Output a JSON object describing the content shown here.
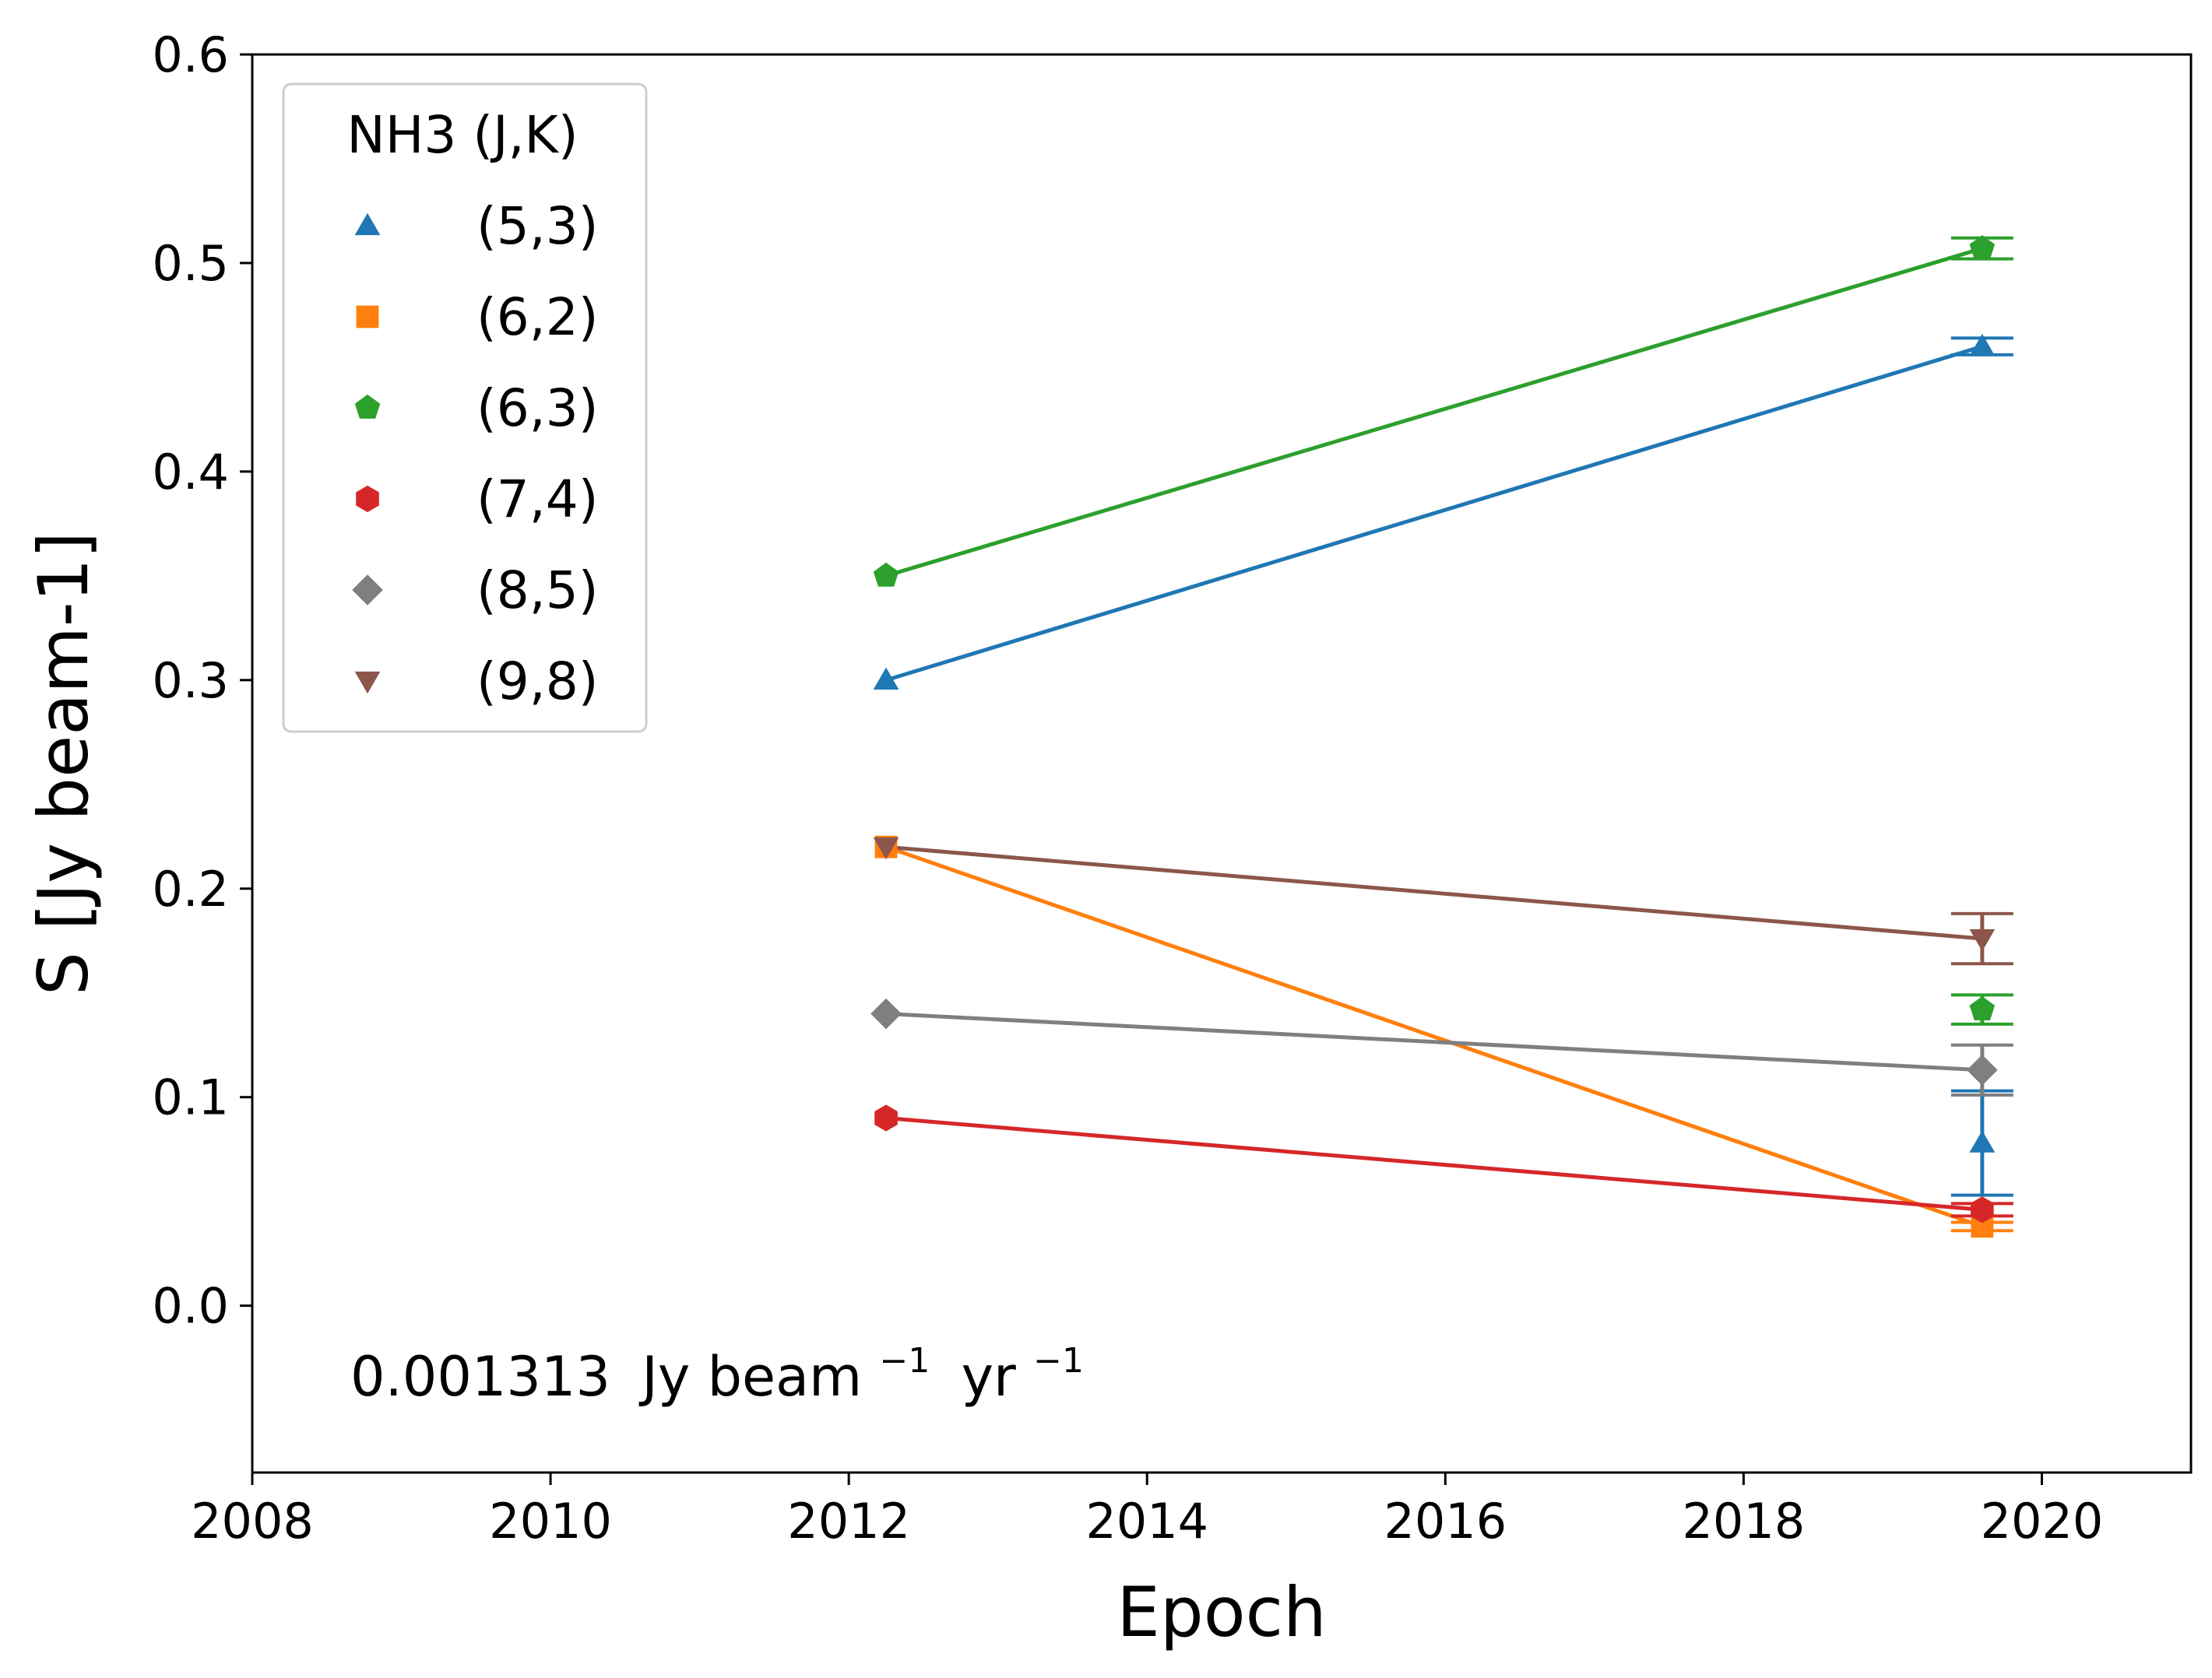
{
  "chart_data": {
    "type": "scatter",
    "xlabel": "Epoch",
    "ylabel": "S [Jy beam-1]",
    "xlim": [
      2008,
      2021
    ],
    "ylim": [
      -0.08,
      0.6
    ],
    "xticks": [
      2008,
      2010,
      2012,
      2014,
      2016,
      2018,
      2020
    ],
    "xtick_labels": [
      "2008",
      "2010",
      "2012",
      "2014",
      "2016",
      "2018",
      "2020"
    ],
    "yticks": [
      0.0,
      0.1,
      0.2,
      0.3,
      0.4,
      0.5,
      0.6
    ],
    "ytick_labels": [
      "0.0",
      "0.1",
      "0.2",
      "0.3",
      "0.4",
      "0.5",
      "0.6"
    ],
    "grid": false,
    "legend": {
      "title": "NH3 (J,K)",
      "placement": "upper-left"
    },
    "annotation": {
      "value": "0.001313",
      "unit1": "Jy beam",
      "exp1": "−1",
      "unit2": "yr",
      "exp2": "−1"
    },
    "series": [
      {
        "name": "(5,3)",
        "color": "#1f77b4",
        "marker": "triangle-up",
        "line": {
          "x": [
            2012.25,
            2019.6
          ],
          "y": [
            0.3,
            0.46
          ]
        },
        "points": [
          {
            "x": 2012.25,
            "y": 0.3
          },
          {
            "x": 2019.6,
            "y": 0.46,
            "err": 0.004
          },
          {
            "x": 2019.6,
            "y": 0.078,
            "err": 0.025
          }
        ]
      },
      {
        "name": "(6,2)",
        "color": "#ff7f0e",
        "marker": "square",
        "line": {
          "x": [
            2012.25,
            2019.6
          ],
          "y": [
            0.22,
            0.038
          ]
        },
        "points": [
          {
            "x": 2012.25,
            "y": 0.22
          },
          {
            "x": 2019.6,
            "y": 0.038,
            "err": 0.002
          }
        ]
      },
      {
        "name": "(6,3)",
        "color": "#2ca02c",
        "marker": "pentagon",
        "line": {
          "x": [
            2012.25,
            2019.6
          ],
          "y": [
            0.35,
            0.507
          ]
        },
        "points": [
          {
            "x": 2012.25,
            "y": 0.35
          },
          {
            "x": 2019.6,
            "y": 0.507,
            "err": 0.005
          },
          {
            "x": 2019.6,
            "y": 0.142,
            "err": 0.007
          }
        ]
      },
      {
        "name": "(7,4)",
        "color": "#d62728",
        "marker": "hexagon",
        "line": {
          "x": [
            2012.25,
            2019.6
          ],
          "y": [
            0.09,
            0.046
          ]
        },
        "points": [
          {
            "x": 2012.25,
            "y": 0.09
          },
          {
            "x": 2019.6,
            "y": 0.046,
            "err": 0.003
          }
        ]
      },
      {
        "name": "(8,5)",
        "color": "#7f7f7f",
        "marker": "diamond",
        "line": {
          "x": [
            2012.25,
            2019.6
          ],
          "y": [
            0.14,
            0.113
          ]
        },
        "points": [
          {
            "x": 2012.25,
            "y": 0.14
          },
          {
            "x": 2019.6,
            "y": 0.113,
            "err": 0.012
          }
        ]
      },
      {
        "name": "(9,8)",
        "color": "#8c564b",
        "marker": "triangle-down",
        "line": {
          "x": [
            2012.25,
            2019.6
          ],
          "y": [
            0.22,
            0.176
          ]
        },
        "points": [
          {
            "x": 2012.25,
            "y": 0.22
          },
          {
            "x": 2019.6,
            "y": 0.176,
            "err": 0.012
          }
        ]
      }
    ]
  }
}
